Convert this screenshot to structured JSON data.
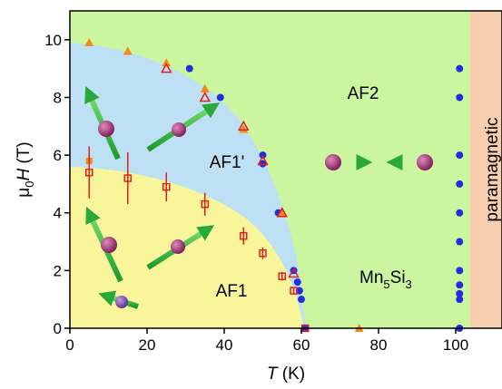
{
  "chart_data": {
    "type": "scatter",
    "x_label": {
      "symbol": "T",
      "unit": "(K)"
    },
    "y_label": {
      "symbol": "μ",
      "sub": "0",
      "var": "H",
      "unit": "(T)"
    },
    "annotations": {
      "af2": "AF2",
      "af1p": "AF1'",
      "af1": "AF1",
      "para": "paramagnetic",
      "compound": [
        "Mn",
        "5",
        "Si",
        "3"
      ]
    },
    "xlim": [
      0,
      112
    ],
    "ylim": [
      0,
      11
    ],
    "xticks": [
      0,
      20,
      40,
      60,
      80,
      100
    ],
    "yticks": [
      0,
      2,
      4,
      6,
      8,
      10
    ],
    "series": [
      {
        "marker": "circle",
        "color": "#1f2fe0",
        "x": [
          31,
          39,
          50,
          50,
          54,
          58,
          59,
          59.5,
          60,
          61,
          101,
          101,
          101,
          101,
          101,
          101,
          101,
          101,
          101,
          101,
          101
        ],
        "values": [
          9,
          8,
          6,
          5.7,
          4,
          2,
          1.6,
          1.3,
          1,
          0,
          9,
          8,
          6,
          5,
          4,
          3,
          2,
          1.5,
          1.2,
          1,
          0
        ]
      },
      {
        "marker": "triangle",
        "color": "#f08a1a",
        "x": [
          5,
          15,
          25,
          35,
          45,
          55,
          75
        ],
        "values": [
          9.9,
          9.6,
          9.2,
          8.3,
          6.9,
          4,
          0
        ]
      },
      {
        "marker": "open-triangle",
        "color": "#e0201a",
        "x": [
          25,
          35,
          45,
          50,
          55,
          58
        ],
        "values": [
          9,
          8,
          7,
          5.8,
          4,
          1.9
        ]
      },
      {
        "marker": "square",
        "color": "#f08a1a",
        "x": [
          5
        ],
        "values": [
          5.8
        ]
      },
      {
        "marker": "open-square",
        "color": "#e0201a",
        "x": [
          5,
          15,
          25,
          35,
          45,
          50,
          55,
          58,
          61
        ],
        "values": [
          5.4,
          5.2,
          4.9,
          4.3,
          3.2,
          2.6,
          1.8,
          1.3,
          0
        ],
        "errors": [
          0.9,
          0.9,
          0.5,
          0.4,
          0.3,
          0.2,
          0.15,
          0.1,
          0
        ]
      }
    ]
  }
}
